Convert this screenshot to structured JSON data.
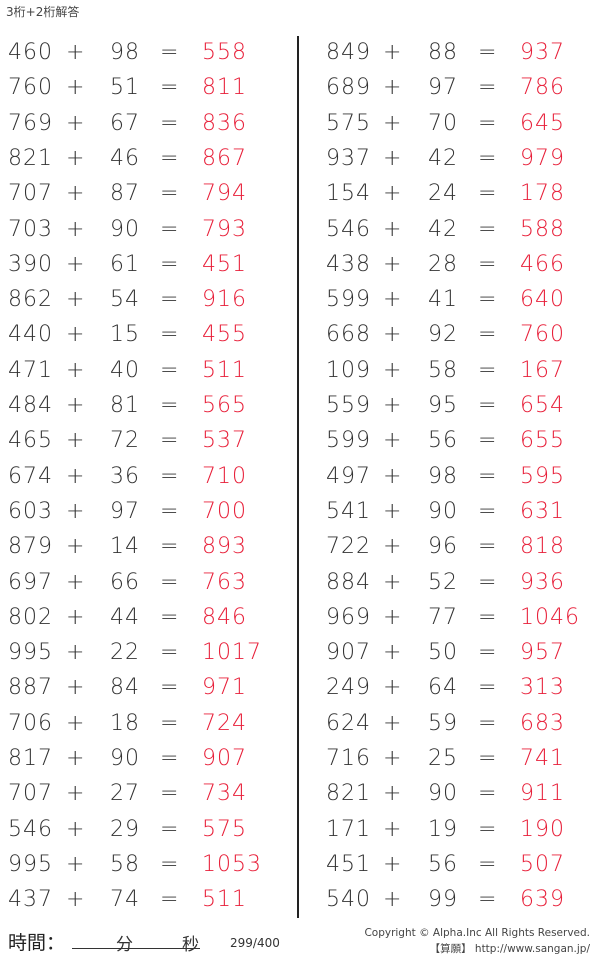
{
  "title": "3桁+2桁解答",
  "plus": "+",
  "equals": "=",
  "colors": {
    "answer": "#e8203a",
    "text": "#333333"
  },
  "left_column": [
    {
      "a": "460",
      "b": "98",
      "answer": "558"
    },
    {
      "a": "760",
      "b": "51",
      "answer": "811"
    },
    {
      "a": "769",
      "b": "67",
      "answer": "836"
    },
    {
      "a": "821",
      "b": "46",
      "answer": "867"
    },
    {
      "a": "707",
      "b": "87",
      "answer": "794"
    },
    {
      "a": "703",
      "b": "90",
      "answer": "793"
    },
    {
      "a": "390",
      "b": "61",
      "answer": "451"
    },
    {
      "a": "862",
      "b": "54",
      "answer": "916"
    },
    {
      "a": "440",
      "b": "15",
      "answer": "455"
    },
    {
      "a": "471",
      "b": "40",
      "answer": "511"
    },
    {
      "a": "484",
      "b": "81",
      "answer": "565"
    },
    {
      "a": "465",
      "b": "72",
      "answer": "537"
    },
    {
      "a": "674",
      "b": "36",
      "answer": "710"
    },
    {
      "a": "603",
      "b": "97",
      "answer": "700"
    },
    {
      "a": "879",
      "b": "14",
      "answer": "893"
    },
    {
      "a": "697",
      "b": "66",
      "answer": "763"
    },
    {
      "a": "802",
      "b": "44",
      "answer": "846"
    },
    {
      "a": "995",
      "b": "22",
      "answer": "1017"
    },
    {
      "a": "887",
      "b": "84",
      "answer": "971"
    },
    {
      "a": "706",
      "b": "18",
      "answer": "724"
    },
    {
      "a": "817",
      "b": "90",
      "answer": "907"
    },
    {
      "a": "707",
      "b": "27",
      "answer": "734"
    },
    {
      "a": "546",
      "b": "29",
      "answer": "575"
    },
    {
      "a": "995",
      "b": "58",
      "answer": "1053"
    },
    {
      "a": "437",
      "b": "74",
      "answer": "511"
    }
  ],
  "right_column": [
    {
      "a": "849",
      "b": "88",
      "answer": "937"
    },
    {
      "a": "689",
      "b": "97",
      "answer": "786"
    },
    {
      "a": "575",
      "b": "70",
      "answer": "645"
    },
    {
      "a": "937",
      "b": "42",
      "answer": "979"
    },
    {
      "a": "154",
      "b": "24",
      "answer": "178"
    },
    {
      "a": "546",
      "b": "42",
      "answer": "588"
    },
    {
      "a": "438",
      "b": "28",
      "answer": "466"
    },
    {
      "a": "599",
      "b": "41",
      "answer": "640"
    },
    {
      "a": "668",
      "b": "92",
      "answer": "760"
    },
    {
      "a": "109",
      "b": "58",
      "answer": "167"
    },
    {
      "a": "559",
      "b": "95",
      "answer": "654"
    },
    {
      "a": "599",
      "b": "56",
      "answer": "655"
    },
    {
      "a": "497",
      "b": "98",
      "answer": "595"
    },
    {
      "a": "541",
      "b": "90",
      "answer": "631"
    },
    {
      "a": "722",
      "b": "96",
      "answer": "818"
    },
    {
      "a": "884",
      "b": "52",
      "answer": "936"
    },
    {
      "a": "969",
      "b": "77",
      "answer": "1046"
    },
    {
      "a": "907",
      "b": "50",
      "answer": "957"
    },
    {
      "a": "249",
      "b": "64",
      "answer": "313"
    },
    {
      "a": "624",
      "b": "59",
      "answer": "683"
    },
    {
      "a": "716",
      "b": "25",
      "answer": "741"
    },
    {
      "a": "821",
      "b": "90",
      "answer": "911"
    },
    {
      "a": "171",
      "b": "19",
      "answer": "190"
    },
    {
      "a": "451",
      "b": "56",
      "answer": "507"
    },
    {
      "a": "540",
      "b": "99",
      "answer": "639"
    }
  ],
  "footer": {
    "time_label": "時間：",
    "minutes": "分",
    "seconds": "秒",
    "page": "299/400",
    "copyright": "Copyright © Alpha.Inc All Rights Reserved.",
    "site": "【算願】 http://www.sangan.jp/"
  }
}
